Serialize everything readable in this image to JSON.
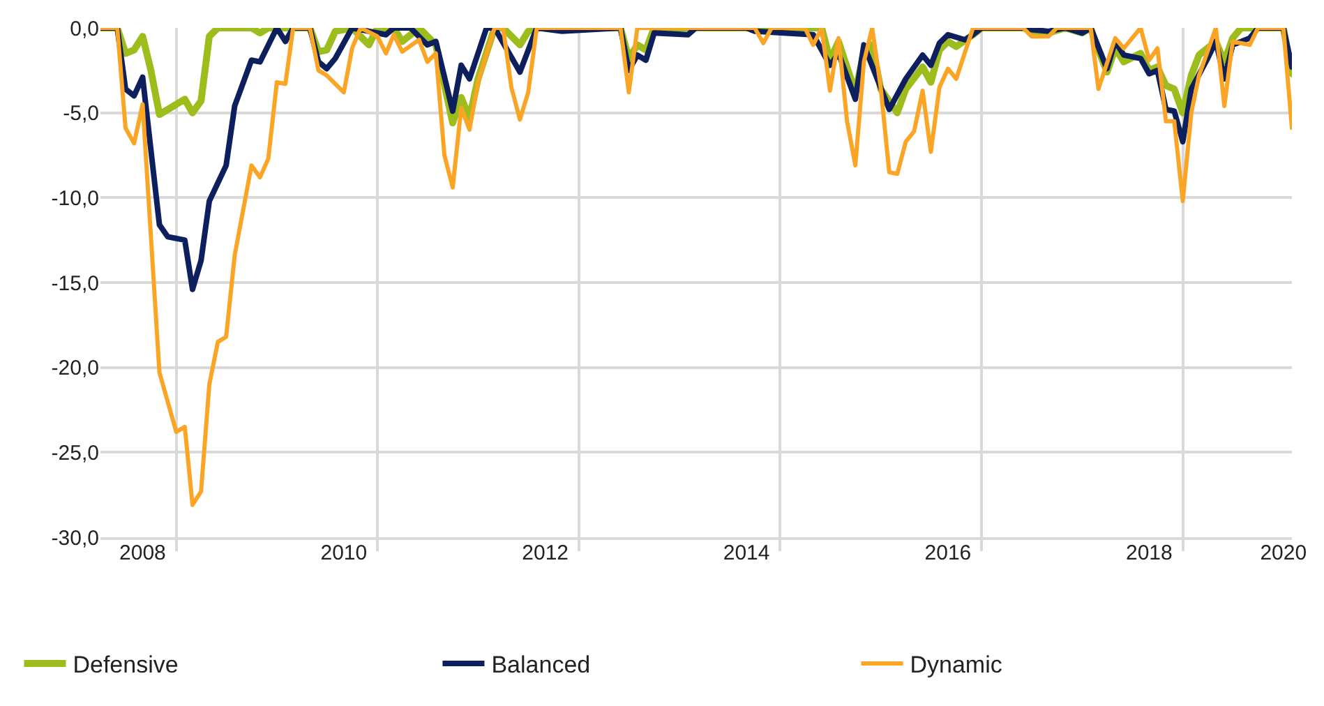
{
  "chart_data": {
    "type": "line",
    "xlim": [
      "2008-04",
      "2020-02"
    ],
    "xticks": [
      {
        "value": "2009-01-01",
        "label": null
      },
      {
        "value": "2011-01-01",
        "label": null
      },
      {
        "value": "2013-01-01",
        "label": null
      },
      {
        "value": "2015-01-01",
        "label": null
      },
      {
        "value": "2017-01-01",
        "label": null
      },
      {
        "value": "2019-01-01",
        "label": null
      },
      {
        "value": "2008-09-01",
        "label": "2008"
      },
      {
        "value": "2010-09-01",
        "label": "2010"
      },
      {
        "value": "2012-09-01",
        "label": "2012"
      },
      {
        "value": "2014-09-01",
        "label": "2014"
      },
      {
        "value": "2016-09-01",
        "label": "2016"
      },
      {
        "value": "2018-09-01",
        "label": "2018"
      },
      {
        "value": "2020-01-01",
        "label": "2020"
      }
    ],
    "ylim": [
      -30,
      0
    ],
    "yticks": [
      {
        "value": 0,
        "label": "0,0"
      },
      {
        "value": -5,
        "label": "-5,0"
      },
      {
        "value": -10,
        "label": "-10,0"
      },
      {
        "value": -15,
        "label": "-15,0"
      },
      {
        "value": -20,
        "label": "-20,0"
      },
      {
        "value": -25,
        "label": "-25,0"
      },
      {
        "value": -30,
        "label": "-30,0"
      }
    ],
    "grid": true,
    "legend": "bottom",
    "marker": "none",
    "line_style": "solid",
    "series": [
      {
        "name": "Defensive",
        "color": "#9dbd1d",
        "x": [
          "2008-04",
          "2008-06",
          "2008-07",
          "2008-08",
          "2008-09",
          "2008-10",
          "2008-11",
          "2009-02",
          "2009-03",
          "2009-04",
          "2009-05",
          "2009-06",
          "2009-10",
          "2009-11",
          "2009-12",
          "2010-05",
          "2010-06",
          "2010-07",
          "2010-08",
          "2010-10",
          "2010-12",
          "2011-01",
          "2011-03",
          "2011-04",
          "2011-06",
          "2011-08",
          "2011-10",
          "2011-11",
          "2011-12",
          "2012-01",
          "2012-03",
          "2012-04",
          "2012-06",
          "2012-07",
          "2012-08",
          "2013-06",
          "2013-07",
          "2013-08",
          "2013-09",
          "2013-10",
          "2015-06",
          "2015-07",
          "2015-08",
          "2015-10",
          "2015-11",
          "2015-12",
          "2016-01",
          "2016-03",
          "2016-04",
          "2016-06",
          "2016-07",
          "2016-08",
          "2016-09",
          "2016-10",
          "2016-12",
          "2017-01",
          "2017-06",
          "2017-08",
          "2017-09",
          "2017-11",
          "2018-01",
          "2018-02",
          "2018-03",
          "2018-04",
          "2018-05",
          "2018-06",
          "2018-08",
          "2018-09",
          "2018-10",
          "2018-11",
          "2018-12",
          "2019-01",
          "2019-02",
          "2019-03",
          "2019-05",
          "2019-06",
          "2019-07",
          "2019-08",
          "2020-01",
          "2020-02"
        ],
        "values": [
          0,
          0,
          -1.5,
          -1.3,
          -0.5,
          -2.5,
          -5.1,
          -4.2,
          -5.0,
          -4.3,
          -0.5,
          0,
          0,
          -0.3,
          0,
          0,
          -1.4,
          -1.3,
          -0.2,
          0,
          -1.0,
          0,
          0,
          -0.8,
          0,
          -1.0,
          -5.6,
          -4.1,
          -5.3,
          -3.0,
          0,
          0,
          -1.0,
          -0.2,
          0,
          0,
          -1.8,
          -1.0,
          -1.3,
          0,
          0,
          -1.9,
          -0.8,
          -3.8,
          -1.4,
          -1.0,
          -3.6,
          -5.0,
          -3.6,
          -2.3,
          -3.2,
          -1.3,
          -0.8,
          -1.1,
          -0.4,
          0,
          0,
          -0.3,
          -0.3,
          0,
          -0.3,
          0,
          -1.3,
          -2.6,
          -1.2,
          -2.0,
          -1.5,
          -2.5,
          -2.3,
          -3.4,
          -3.6,
          -5.0,
          -2.8,
          -1.6,
          -0.8,
          -2.0,
          -0.6,
          0,
          0,
          -2.7
        ]
      },
      {
        "name": "Balanced",
        "color": "#0d1f5c",
        "x": [
          "2008-04",
          "2008-06",
          "2008-07",
          "2008-08",
          "2008-09",
          "2008-11",
          "2008-12",
          "2009-02",
          "2009-03",
          "2009-04",
          "2009-05",
          "2009-07",
          "2009-08",
          "2009-10",
          "2009-11",
          "2010-01",
          "2010-02",
          "2010-03",
          "2010-05",
          "2010-06",
          "2010-07",
          "2010-08",
          "2010-10",
          "2011-02",
          "2011-03",
          "2011-05",
          "2011-07",
          "2011-08",
          "2011-10",
          "2011-11",
          "2011-12",
          "2012-02",
          "2012-03",
          "2012-06",
          "2012-08",
          "2012-11",
          "2013-06",
          "2013-07",
          "2013-08",
          "2013-09",
          "2013-10",
          "2014-02",
          "2014-03",
          "2014-09",
          "2014-10",
          "2015-05",
          "2015-07",
          "2015-08",
          "2015-10",
          "2015-11",
          "2016-02",
          "2016-04",
          "2016-06",
          "2016-07",
          "2016-08",
          "2016-09",
          "2016-11",
          "2016-12",
          "2017-01",
          "2017-06",
          "2017-07",
          "2017-09",
          "2017-11",
          "2018-01",
          "2018-02",
          "2018-04",
          "2018-05",
          "2018-06",
          "2018-08",
          "2018-09",
          "2018-10",
          "2018-11",
          "2018-12",
          "2019-01",
          "2019-02",
          "2019-04",
          "2019-05",
          "2019-06",
          "2019-07",
          "2019-09",
          "2019-10",
          "2020-01",
          "2020-02"
        ],
        "values": [
          0,
          0,
          -3.6,
          -4.0,
          -2.9,
          -11.6,
          -12.3,
          -12.5,
          -15.4,
          -13.7,
          -10.2,
          -8.1,
          -4.6,
          -1.9,
          -2.0,
          0,
          -0.8,
          0,
          0,
          -2.0,
          -2.4,
          -1.8,
          0,
          -0.4,
          0,
          0,
          -1.0,
          -0.8,
          -4.9,
          -2.2,
          -3.0,
          0,
          0,
          -2.6,
          0,
          -0.2,
          0,
          -2.5,
          -1.6,
          -1.9,
          -0.3,
          -0.4,
          0,
          0,
          -0.2,
          -0.4,
          -2.2,
          -1.5,
          -4.2,
          -1.0,
          -4.8,
          -3.0,
          -1.6,
          -2.2,
          -0.9,
          -0.4,
          -0.7,
          -0.4,
          0,
          0,
          -0.1,
          -0.2,
          0,
          -0.3,
          0,
          -2.4,
          -0.8,
          -1.6,
          -1.8,
          -2.7,
          -2.5,
          -4.8,
          -4.9,
          -6.7,
          -3.6,
          -1.8,
          -0.8,
          -3.0,
          -1.0,
          -0.6,
          0,
          0,
          -2.3
        ]
      },
      {
        "name": "Dynamic",
        "color": "#fba526",
        "x": [
          "2008-04",
          "2008-06",
          "2008-07",
          "2008-08",
          "2008-09",
          "2008-11",
          "2009-01",
          "2009-02",
          "2009-03",
          "2009-04",
          "2009-05",
          "2009-06",
          "2009-07",
          "2009-08",
          "2009-10",
          "2009-11",
          "2009-12",
          "2010-01",
          "2010-02",
          "2010-03",
          "2010-05",
          "2010-06",
          "2010-07",
          "2010-09",
          "2010-10",
          "2010-11",
          "2011-01",
          "2011-02",
          "2011-03",
          "2011-04",
          "2011-06",
          "2011-07",
          "2011-08",
          "2011-09",
          "2011-10",
          "2011-11",
          "2011-12",
          "2012-01",
          "2012-03",
          "2012-04",
          "2012-05",
          "2012-06",
          "2012-07",
          "2012-08",
          "2013-06",
          "2013-07",
          "2013-08",
          "2014-10",
          "2014-11",
          "2014-12",
          "2015-04",
          "2015-05",
          "2015-06",
          "2015-07",
          "2015-08",
          "2015-09",
          "2015-10",
          "2015-11",
          "2015-12",
          "2016-01",
          "2016-02",
          "2016-03",
          "2016-04",
          "2016-05",
          "2016-06",
          "2016-07",
          "2016-08",
          "2016-09",
          "2016-10",
          "2016-12",
          "2017-06",
          "2017-07",
          "2017-09",
          "2017-10",
          "2018-02",
          "2018-03",
          "2018-05",
          "2018-06",
          "2018-08",
          "2018-09",
          "2018-10",
          "2018-11",
          "2018-12",
          "2019-01",
          "2019-02",
          "2019-03",
          "2019-05",
          "2019-06",
          "2019-07",
          "2019-09",
          "2019-10",
          "2020-01",
          "2020-02"
        ],
        "values": [
          0,
          0,
          -5.9,
          -6.8,
          -4.5,
          -20.3,
          -23.8,
          -23.5,
          -28.1,
          -27.3,
          -21.0,
          -18.5,
          -18.2,
          -13.4,
          -8.1,
          -8.8,
          -7.7,
          -3.2,
          -3.3,
          0,
          0,
          -2.5,
          -2.8,
          -3.8,
          -1.2,
          0,
          -0.5,
          -1.5,
          -0.4,
          -1.4,
          -0.7,
          -2.0,
          -1.5,
          -7.5,
          -9.4,
          -4.7,
          -6.0,
          -3.2,
          0,
          0,
          -3.5,
          -5.4,
          -3.8,
          0,
          0,
          -3.8,
          0,
          0,
          -0.9,
          0,
          0,
          -1.0,
          0,
          -3.7,
          -0.6,
          -5.5,
          -8.1,
          -2.0,
          0,
          -3.5,
          -8.5,
          -8.6,
          -6.7,
          -6.1,
          -3.7,
          -7.3,
          -3.5,
          -2.4,
          -3.0,
          0,
          0,
          -0.5,
          -0.5,
          0,
          0,
          -3.6,
          -0.6,
          -1.2,
          0,
          -1.9,
          -1.2,
          -5.5,
          -5.5,
          -10.2,
          -5.0,
          -2.8,
          0,
          -4.6,
          -0.8,
          -1.0,
          0,
          0,
          -5.9
        ]
      }
    ]
  }
}
